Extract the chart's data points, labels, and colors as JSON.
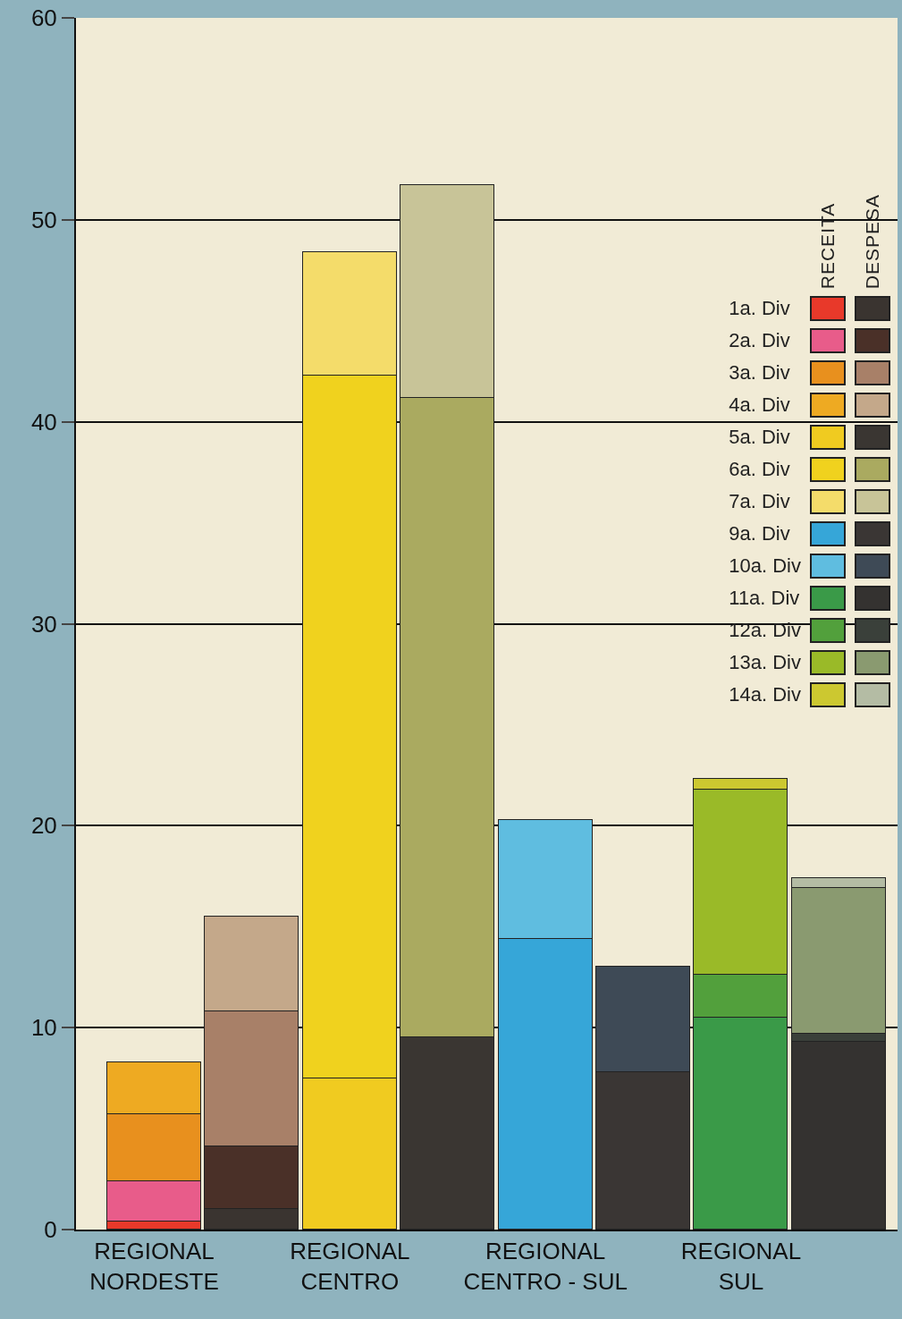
{
  "chart_data": {
    "type": "bar",
    "stacked": true,
    "categories": [
      "REGIONAL NORDESTE",
      null,
      "REGIONAL CENTRO",
      null,
      "REGIONAL CENTRO - SUL",
      null,
      "REGIONAL SUL",
      null
    ],
    "ylim": [
      0,
      60
    ],
    "yticks": [
      0,
      10,
      20,
      30,
      40,
      50,
      60
    ],
    "grid": "y",
    "legend": "right",
    "annotations": [
      "RECEITA",
      "DESPESA"
    ],
    "series": [
      {
        "name": "1a. Div",
        "colors": [
          "#e8392a",
          "#3a3430",
          "#e8392a",
          "#3a3430",
          "#e8392a",
          "#3a3430",
          "#e8392a",
          "#3a3430"
        ],
        "values": [
          0.4,
          1.0,
          null,
          null,
          null,
          null,
          null,
          null
        ]
      },
      {
        "name": "2a. Div",
        "colors": [
          "#e85c8a",
          "#4a3028",
          "#e85c8a",
          "#4a3028",
          "#e85c8a",
          "#4a3028",
          "#e85c8a",
          "#4a3028"
        ],
        "values": [
          2.0,
          3.1,
          null,
          null,
          null,
          null,
          null,
          null
        ]
      },
      {
        "name": "3a. Div",
        "colors": [
          "#e8901e",
          "#a88068",
          "#e8901e",
          "#a88068",
          "#e8901e",
          "#a88068",
          "#e8901e",
          "#a88068"
        ],
        "values": [
          3.3,
          6.7,
          null,
          null,
          null,
          null,
          null,
          null
        ]
      },
      {
        "name": "4a. Div",
        "colors": [
          "#eeaa22",
          "#c4a88a",
          "#eeaa22",
          "#c4a88a",
          "#eeaa22",
          "#c4a88a",
          "#eeaa22",
          "#c4a88a"
        ],
        "values": [
          2.6,
          4.7,
          null,
          null,
          null,
          null,
          null,
          null
        ]
      },
      {
        "name": "5a. Div",
        "colors": [
          "#f0cb20",
          "#3a3632",
          "#f0cb20",
          "#3a3632",
          "#f0cb20",
          "#3a3632",
          "#f0cb20",
          "#3a3632"
        ],
        "values": [
          null,
          null,
          7.5,
          9.5,
          null,
          null,
          null,
          null
        ]
      },
      {
        "name": "6a. Div",
        "colors": [
          "#f0d21e",
          "#aaaa60",
          "#f0d21e",
          "#aaaa60",
          "#f0d21e",
          "#aaaa60",
          "#f0d21e",
          "#aaaa60"
        ],
        "values": [
          null,
          null,
          34.8,
          31.7,
          null,
          null,
          null,
          null
        ]
      },
      {
        "name": "7a. Div",
        "colors": [
          "#f4dc6a",
          "#c8c498",
          "#f4dc6a",
          "#c8c498",
          "#f4dc6a",
          "#c8c498",
          "#f4dc6a",
          "#c8c498"
        ],
        "values": [
          null,
          null,
          6.1,
          10.5,
          null,
          null,
          null,
          null
        ]
      },
      {
        "name": "9a. Div",
        "colors": [
          "#36a6d8",
          "#3a3634",
          "#36a6d8",
          "#3a3634",
          "#36a6d8",
          "#3a3634",
          "#36a6d8",
          "#3a3634"
        ],
        "values": [
          null,
          null,
          null,
          null,
          14.4,
          7.8,
          null,
          null
        ]
      },
      {
        "name": "10a. Div",
        "colors": [
          "#5fbde0",
          "#3e4a56",
          "#5fbde0",
          "#3e4a56",
          "#5fbde0",
          "#3e4a56",
          "#5fbde0",
          "#3e4a56"
        ],
        "values": [
          null,
          null,
          null,
          null,
          5.9,
          5.2,
          null,
          null
        ]
      },
      {
        "name": "11a. Div",
        "colors": [
          "#3a9a48",
          "#343230",
          "#3a9a48",
          "#343230",
          "#3a9a48",
          "#343230",
          "#3a9a48",
          "#343230"
        ],
        "values": [
          null,
          null,
          null,
          null,
          null,
          null,
          10.5,
          9.3
        ]
      },
      {
        "name": "12a. Div",
        "colors": [
          "#52a03c",
          "#3a403a",
          "#52a03c",
          "#3a403a",
          "#52a03c",
          "#3a403a",
          "#52a03c",
          "#3a403a"
        ],
        "values": [
          null,
          null,
          null,
          null,
          null,
          null,
          2.1,
          0.4
        ]
      },
      {
        "name": "13a. Div",
        "colors": [
          "#9aba28",
          "#8a9a70",
          "#9aba28",
          "#8a9a70",
          "#9aba28",
          "#8a9a70",
          "#9aba28",
          "#8a9a70"
        ],
        "values": [
          null,
          null,
          null,
          null,
          null,
          null,
          9.2,
          7.2
        ]
      },
      {
        "name": "14a. Div",
        "colors": [
          "#ccc830",
          "#b4bca4",
          "#ccc830",
          "#b4bca4",
          "#ccc830",
          "#b4bca4",
          "#ccc830",
          "#b4bca4"
        ],
        "values": [
          null,
          null,
          null,
          null,
          null,
          null,
          0.5,
          0.5
        ]
      }
    ]
  }
}
